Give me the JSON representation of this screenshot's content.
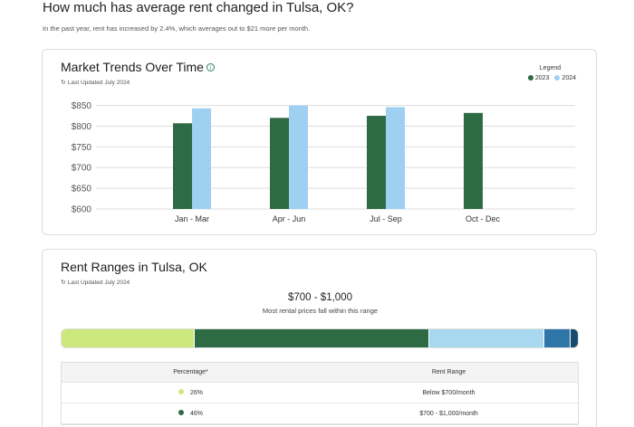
{
  "page": {
    "title": "How much has average rent changed in Tulsa, OK?",
    "subtitle": "In the past year, rent has increased by 2.4%, which averages out to $21 more per month."
  },
  "trends": {
    "title": "Market Trends Over Time",
    "info_icon": "info-icon",
    "updated": "Last Updated July 2024",
    "legend_title": "Legend",
    "legend": [
      {
        "label": "2023",
        "color": "#2e6b45"
      },
      {
        "label": "2024",
        "color": "#9fd0f2"
      }
    ]
  },
  "chart_data": {
    "type": "bar",
    "categories": [
      "Jan - Mar",
      "Apr - Jun",
      "Jul - Sep",
      "Oct - Dec"
    ],
    "series": [
      {
        "name": "2023",
        "values": [
          807,
          820,
          825,
          832
        ],
        "color": "#2e6b45"
      },
      {
        "name": "2024",
        "values": [
          843,
          850,
          846,
          null
        ],
        "color": "#9fd0f2"
      }
    ],
    "ylim": [
      600,
      860
    ],
    "yticks": [
      600,
      650,
      700,
      750,
      800,
      850
    ],
    "ytick_labels": [
      "$600",
      "$650",
      "$700",
      "$750",
      "$800",
      "$850"
    ],
    "grid": true
  },
  "ranges": {
    "title": "Rent Ranges in Tulsa, OK",
    "updated": "Last Updated July 2024",
    "headline": "$700 - $1,000",
    "subheadline": "Most rental prices fall within this range",
    "bar_segments": [
      {
        "percent": 26,
        "color": "#cce87f"
      },
      {
        "percent": 46,
        "color": "#2e6b45"
      },
      {
        "percent": 22.5,
        "color": "#a8d8f0"
      },
      {
        "percent": 5,
        "color": "#2f76a8"
      },
      {
        "percent": 1.5,
        "color": "#1b4a70"
      }
    ],
    "table_headers": {
      "percentage": "Percentage*",
      "range": "Rent Range"
    },
    "rows": [
      {
        "percentage": "26%",
        "range": "Below $700/month",
        "color": "#cce87f"
      },
      {
        "percentage": "46%",
        "range": "$700 - $1,000/month",
        "color": "#2e6b45"
      }
    ]
  }
}
